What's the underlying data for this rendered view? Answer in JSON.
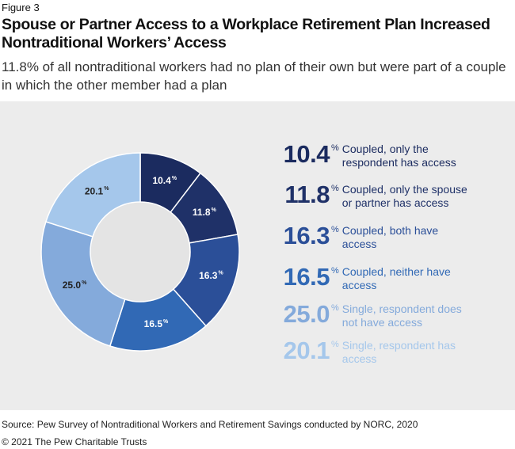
{
  "figure_label": "Figure 3",
  "chart_data": {
    "type": "donut",
    "title": "Spouse or Partner Access to a Workplace Retirement Plan Increased Nontraditional Workers’ Access",
    "subtitle": "11.8% of all nontraditional workers had no plan of their own but were part of a couple in which the other member had a plan",
    "unit": "%",
    "categories": [
      "Coupled, only the respondent has access",
      "Coupled, only the spouse or partner has access",
      "Coupled, both have access",
      "Coupled, neither have access",
      "Single, respondent does not have access",
      "Single, respondent has access"
    ],
    "values": [
      10.4,
      11.8,
      16.3,
      16.5,
      25.0,
      20.1
    ],
    "value_labels": [
      "10.4",
      "11.8",
      "16.3",
      "16.5",
      "25.0",
      "20.1"
    ],
    "colors": [
      "#1b2b5f",
      "#1f3168",
      "#2b4f98",
      "#3169b5",
      "#84aadb",
      "#a5c7eb"
    ]
  },
  "source": "Source: Pew Survey of Nontraditional Workers and Retirement Savings conducted by NORC, 2020",
  "copyright": "© 2021 The Pew Charitable Trusts"
}
